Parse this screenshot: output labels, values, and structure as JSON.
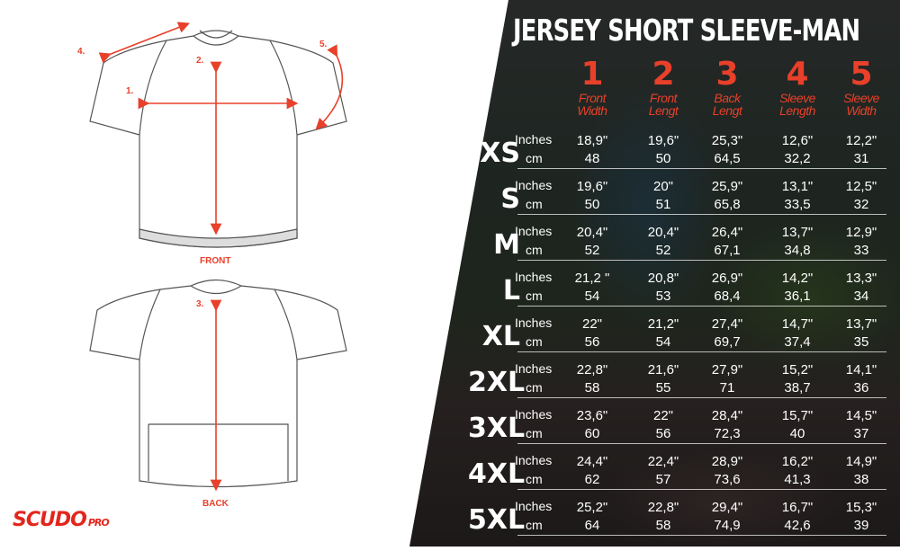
{
  "title": "JERSEY SHORT SLEEVE-MAN",
  "brand": {
    "name": "SCUDO",
    "suffix": "PRO",
    "color": "#e3261c"
  },
  "accent_color": "#e8402a",
  "diagram": {
    "front_label": "FRONT",
    "back_label": "BACK",
    "markers": [
      "1.",
      "2.",
      "3.",
      "4.",
      "5."
    ]
  },
  "columns": [
    {
      "number": "1",
      "line1": "Front",
      "line2": "Width"
    },
    {
      "number": "2",
      "line1": "Front",
      "line2": "Lengt"
    },
    {
      "number": "3",
      "line1": "Back",
      "line2": "Lengt"
    },
    {
      "number": "4",
      "line1": "Sleeve",
      "line2": "Length"
    },
    {
      "number": "5",
      "line1": "Sleeve",
      "line2": "Width"
    }
  ],
  "units": {
    "inches": "Inches",
    "cm": "cm"
  },
  "rows": [
    {
      "size": "XS",
      "inches": [
        "18,9\"",
        "19,6\"",
        "25,3\"",
        "12,6\"",
        "12,2\""
      ],
      "cm": [
        "48",
        "50",
        "64,5",
        "32,2",
        "31"
      ]
    },
    {
      "size": "S",
      "inches": [
        "19,6\"",
        "20\"",
        "25,9\"",
        "13,1\"",
        "12,5\""
      ],
      "cm": [
        "50",
        "51",
        "65,8",
        "33,5",
        "32"
      ]
    },
    {
      "size": "M",
      "inches": [
        "20,4\"",
        "20,4\"",
        "26,4\"",
        "13,7\"",
        "12,9\""
      ],
      "cm": [
        "52",
        "52",
        "67,1",
        "34,8",
        "33"
      ]
    },
    {
      "size": "L",
      "inches": [
        "21,2 \"",
        "20,8\"",
        "26,9\"",
        "14,2\"",
        "13,3\""
      ],
      "cm": [
        "54",
        "53",
        "68,4",
        "36,1",
        "34"
      ]
    },
    {
      "size": "XL",
      "inches": [
        "22\"",
        "21,2\"",
        "27,4\"",
        "14,7\"",
        "13,7\""
      ],
      "cm": [
        "56",
        "54",
        "69,7",
        "37,4",
        "35"
      ]
    },
    {
      "size": "2XL",
      "inches": [
        "22,8\"",
        "21,6\"",
        "27,9\"",
        "15,2\"",
        "14,1\""
      ],
      "cm": [
        "58",
        "55",
        "71",
        "38,7",
        "36"
      ]
    },
    {
      "size": "3XL",
      "inches": [
        "23,6\"",
        "22\"",
        "28,4\"",
        "15,7\"",
        "14,5\""
      ],
      "cm": [
        "60",
        "56",
        "72,3",
        "40",
        "37"
      ]
    },
    {
      "size": "4XL",
      "inches": [
        "24,4\"",
        "22,4\"",
        "28,9\"",
        "16,2\"",
        "14,9\""
      ],
      "cm": [
        "62",
        "57",
        "73,6",
        "41,3",
        "38"
      ]
    },
    {
      "size": "5XL",
      "inches": [
        "25,2\"",
        "22,8\"",
        "29,4\"",
        "16,7\"",
        "15,3\""
      ],
      "cm": [
        "64",
        "58",
        "74,9",
        "42,6",
        "39"
      ]
    }
  ]
}
